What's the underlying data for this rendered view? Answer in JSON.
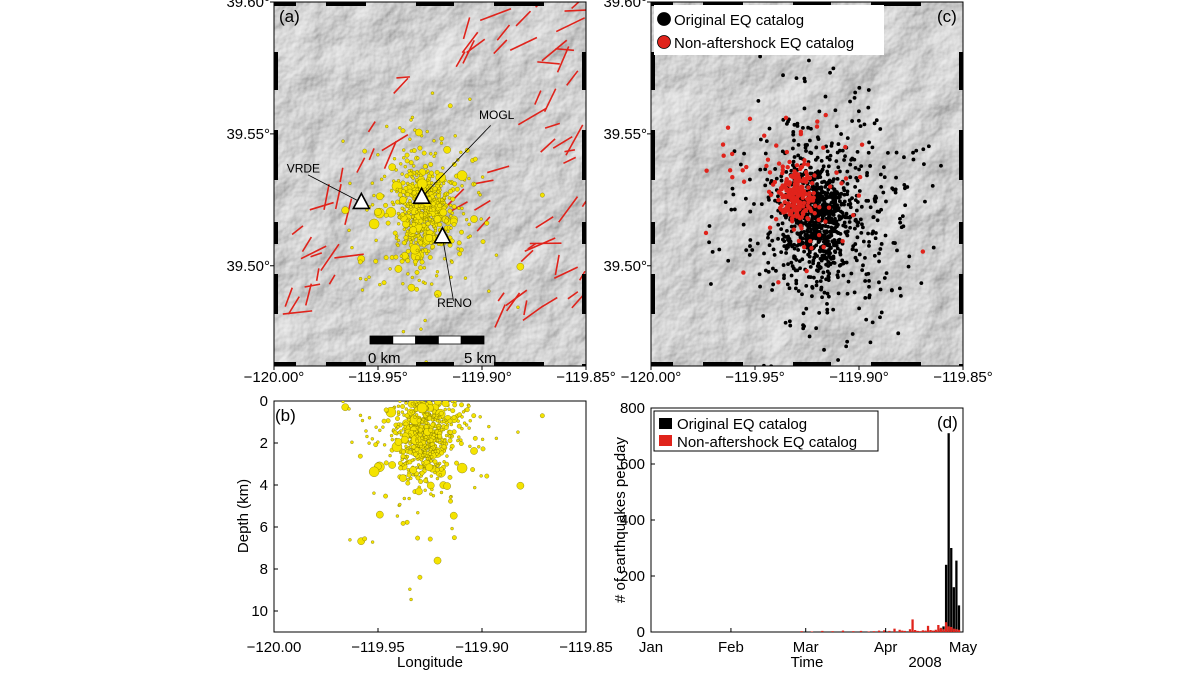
{
  "chart_data": [
    {
      "panel": "(a)",
      "type": "scatter",
      "xticks": [
        "−120.00°",
        "−119.95°",
        "−119.90°",
        "−119.85°"
      ],
      "xtick_values": [
        -120.0,
        -119.95,
        -119.9,
        -119.85
      ],
      "yticks": [
        "39.60°",
        "39.55°",
        "39.50°"
      ],
      "ytick_values": [
        39.6,
        39.55,
        39.5
      ],
      "xlim": [
        -120.0,
        -119.85
      ],
      "ylim": [
        39.462,
        39.6
      ],
      "scale_bar": {
        "start_label": "0 km",
        "end_label": "5 km"
      },
      "stations": [
        {
          "name": "VRDE",
          "lon": -119.958,
          "lat": 39.524
        },
        {
          "name": "MOGL",
          "lon": -119.929,
          "lat": 39.526
        },
        {
          "name": "RENO",
          "lon": -119.919,
          "lat": 39.511
        }
      ],
      "colors": {
        "events": "#f4e300",
        "faults": "#e0231b",
        "stations": "#ffffff"
      }
    },
    {
      "panel": "(b)",
      "type": "scatter",
      "xlabel": "Longitude",
      "ylabel": "Depth (km)",
      "xticks": [
        "−120.00",
        "−119.95",
        "−119.90",
        "−119.85"
      ],
      "xtick_values": [
        -120.0,
        -119.95,
        -119.9,
        -119.85
      ],
      "yticks": [
        "0",
        "2",
        "4",
        "6",
        "8",
        "10"
      ],
      "ytick_values": [
        0,
        2,
        4,
        6,
        8,
        10
      ],
      "xlim": [
        -120.0,
        -119.85
      ],
      "ylim": [
        11,
        0
      ],
      "colors": {
        "events": "#f4e300"
      }
    },
    {
      "panel": "(c)",
      "type": "scatter",
      "xticks": [
        "−120.00°",
        "−119.95°",
        "−119.90°",
        "−119.85°"
      ],
      "xtick_values": [
        -120.0,
        -119.95,
        -119.9,
        -119.85
      ],
      "yticks": [
        "39.60°",
        "39.55°",
        "39.50°"
      ],
      "ytick_values": [
        39.6,
        39.55,
        39.5
      ],
      "xlim": [
        -120.0,
        -119.85
      ],
      "ylim": [
        39.462,
        39.6
      ],
      "legend": [
        "Original EQ catalog",
        "Non-aftershock EQ catalog"
      ],
      "legend_placement": "top-right",
      "colors": {
        "original": "#000000",
        "nonaftershock": "#e0231b"
      }
    },
    {
      "panel": "(d)",
      "type": "bar",
      "xlabel": "Time",
      "xlabel_year": "2008",
      "ylabel": "# of earthquakes per day",
      "xticks": [
        "Jan",
        "Feb",
        "Mar",
        "Apr",
        "May"
      ],
      "xtick_days": [
        0,
        31,
        60,
        91,
        121
      ],
      "yticks": [
        "0",
        "200",
        "400",
        "600",
        "800"
      ],
      "ytick_values": [
        0,
        200,
        400,
        600,
        800
      ],
      "xlim_days": [
        0,
        121
      ],
      "ylim": [
        0,
        800
      ],
      "legend": [
        "Original EQ catalog",
        "Non-aftershock EQ catalog"
      ],
      "legend_placement": "top-right",
      "colors": {
        "original": "#000000",
        "nonaftershock": "#e0231b"
      },
      "series": [
        {
          "name": "Original EQ catalog",
          "days": [
            99,
            104,
            109,
            110,
            111,
            112,
            113,
            114,
            115,
            116,
            117,
            118,
            119
          ],
          "values": [
            2,
            2,
            4,
            3,
            2,
            10,
            20,
            240,
            710,
            300,
            160,
            255,
            95
          ]
        },
        {
          "name": "Non-aftershock EQ catalog",
          "days": [
            58,
            62,
            66,
            70,
            74,
            78,
            81,
            84,
            86,
            88,
            90,
            92,
            94,
            96,
            97,
            98,
            100,
            101,
            102,
            103,
            104,
            105,
            106,
            107,
            108,
            109,
            110,
            111,
            112,
            113,
            114,
            115,
            116,
            117,
            118,
            119
          ],
          "values": [
            3,
            2,
            4,
            3,
            5,
            3,
            4,
            2,
            3,
            5,
            6,
            4,
            12,
            8,
            5,
            4,
            10,
            45,
            7,
            4,
            3,
            6,
            5,
            22,
            7,
            5,
            8,
            25,
            15,
            10,
            35,
            20,
            18,
            12,
            10,
            8
          ]
        }
      ]
    }
  ]
}
